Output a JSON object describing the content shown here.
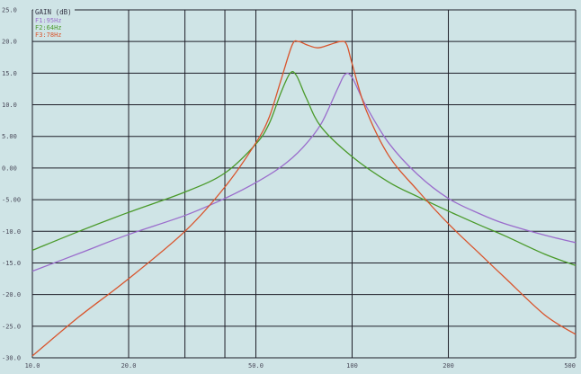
{
  "chart_data": {
    "type": "line",
    "title": "GAIN (dB)",
    "xscale": "log",
    "xlim": [
      10,
      500
    ],
    "ylim": [
      -30,
      25
    ],
    "grid": true,
    "legend_position": "top-left",
    "x_ticks": [
      {
        "value": 10,
        "label": "10.0"
      },
      {
        "value": 20,
        "label": "20.0"
      },
      {
        "value": 50,
        "label": "50.0"
      },
      {
        "value": 100,
        "label": "100"
      },
      {
        "value": 200,
        "label": "200"
      },
      {
        "value": 500,
        "label": "500"
      }
    ],
    "x_minor_gridlines": [
      30,
      40
    ],
    "y_ticks": [
      {
        "value": 25,
        "label": "25.0"
      },
      {
        "value": 20,
        "label": "20.0"
      },
      {
        "value": 15,
        "label": "15.0"
      },
      {
        "value": 10,
        "label": "10.0"
      },
      {
        "value": 5,
        "label": "5.00"
      },
      {
        "value": 0,
        "label": "0.00"
      },
      {
        "value": -5,
        "label": "-5.00"
      },
      {
        "value": -10,
        "label": "-10.0"
      },
      {
        "value": -15,
        "label": "-15.0"
      },
      {
        "value": -20,
        "label": "-20.0"
      },
      {
        "value": -25,
        "label": "-25.0"
      },
      {
        "value": -30,
        "label": "-30.0"
      }
    ],
    "series": [
      {
        "name": "F1:95Hz",
        "color": "#9a6ccc",
        "points": [
          [
            10,
            -16.3
          ],
          [
            14,
            -13.5
          ],
          [
            20,
            -10.5
          ],
          [
            30,
            -7.5
          ],
          [
            40,
            -4.8
          ],
          [
            50,
            -2.3
          ],
          [
            60,
            0.2
          ],
          [
            70,
            3.2
          ],
          [
            80,
            7.0
          ],
          [
            90,
            12.5
          ],
          [
            95,
            14.8
          ],
          [
            100,
            14.3
          ],
          [
            110,
            10.0
          ],
          [
            130,
            4.0
          ],
          [
            160,
            -1.0
          ],
          [
            200,
            -4.8
          ],
          [
            250,
            -7.2
          ],
          [
            300,
            -8.8
          ],
          [
            400,
            -10.6
          ],
          [
            500,
            -11.8
          ]
        ]
      },
      {
        "name": "F2:64Hz",
        "color": "#4a9a2a",
        "points": [
          [
            10,
            -13.0
          ],
          [
            14,
            -10.0
          ],
          [
            20,
            -7.0
          ],
          [
            30,
            -3.8
          ],
          [
            40,
            -0.8
          ],
          [
            50,
            3.8
          ],
          [
            55,
            7.0
          ],
          [
            60,
            12.0
          ],
          [
            64,
            15.0
          ],
          [
            67,
            14.6
          ],
          [
            72,
            11.0
          ],
          [
            80,
            6.5
          ],
          [
            100,
            1.8
          ],
          [
            130,
            -2.2
          ],
          [
            160,
            -4.5
          ],
          [
            200,
            -6.8
          ],
          [
            250,
            -9.0
          ],
          [
            300,
            -10.7
          ],
          [
            400,
            -13.6
          ],
          [
            500,
            -15.4
          ]
        ]
      },
      {
        "name": "F3:78Hz",
        "color": "#d9542c",
        "points": [
          [
            10,
            -29.7
          ],
          [
            14,
            -23.5
          ],
          [
            20,
            -17.5
          ],
          [
            30,
            -10.0
          ],
          [
            40,
            -3.0
          ],
          [
            50,
            4.0
          ],
          [
            55,
            8.0
          ],
          [
            60,
            14.0
          ],
          [
            65,
            19.5
          ],
          [
            68,
            20.0
          ],
          [
            72,
            19.5
          ],
          [
            78,
            19.0
          ],
          [
            85,
            19.5
          ],
          [
            92,
            20.0
          ],
          [
            96,
            19.6
          ],
          [
            100,
            16.5
          ],
          [
            110,
            9.5
          ],
          [
            130,
            2.0
          ],
          [
            160,
            -3.5
          ],
          [
            200,
            -8.8
          ],
          [
            250,
            -13.5
          ],
          [
            300,
            -17.3
          ],
          [
            400,
            -23.2
          ],
          [
            500,
            -26.3
          ]
        ]
      }
    ]
  }
}
